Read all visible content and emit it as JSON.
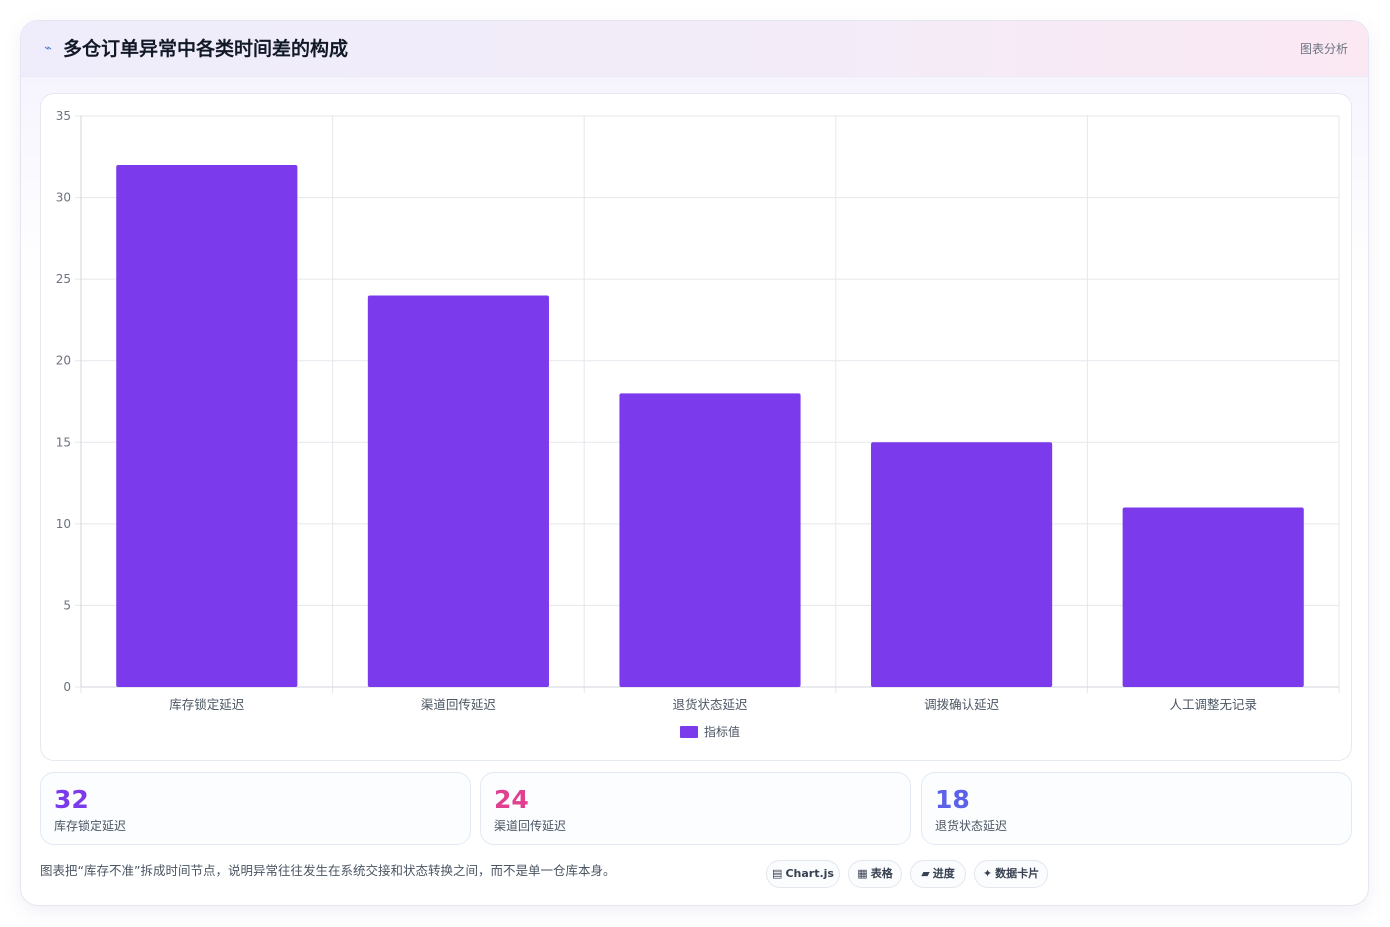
{
  "header": {
    "title": "多仓订单异常中各类时间差的构成",
    "tag": "图表分析",
    "icon": "trend-line-icon"
  },
  "chart_data": {
    "type": "bar",
    "categories": [
      "库存锁定延迟",
      "渠道回传延迟",
      "退货状态延迟",
      "调拨确认延迟",
      "人工调整无记录"
    ],
    "series": [
      {
        "name": "指标值",
        "values": [
          32,
          24,
          18,
          15,
          11
        ],
        "color": "#7c3aed"
      }
    ],
    "ylim": [
      0,
      35
    ],
    "yticks": [
      0,
      5,
      10,
      15,
      20,
      25,
      30,
      35
    ],
    "grid": true,
    "legend": "bottom-center"
  },
  "stats": [
    {
      "value": "32",
      "label": "库存锁定延迟",
      "color": "#7c3aed"
    },
    {
      "value": "24",
      "label": "渠道回传延迟",
      "color": "#e0408f"
    },
    {
      "value": "18",
      "label": "退货状态延迟",
      "color": "#5b61e8"
    }
  ],
  "footnote": "图表把“库存不准”拆成时间节点，说明异常往往发生在系统交接和状态转换之间，而不是单一仓库本身。",
  "chips": [
    {
      "icon": "▤",
      "label": "Chart.js"
    },
    {
      "icon": "▦",
      "label": "表格"
    },
    {
      "icon": "▰",
      "label": "进度"
    },
    {
      "icon": "✦",
      "label": "数据卡片"
    }
  ]
}
